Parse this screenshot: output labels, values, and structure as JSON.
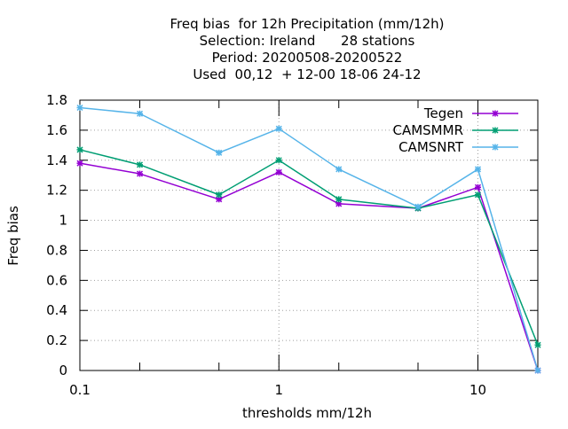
{
  "chart_data": {
    "type": "line",
    "title_lines": [
      "Freq bias  for 12h Precipitation (mm/12h)",
      "Selection: Ireland      28 stations",
      "Period: 20200508-20200522",
      "Used  00,12  + 12-00 18-06 24-12"
    ],
    "xlabel": "thresholds mm/12h",
    "ylabel": "Freq bias",
    "x_scale": "log",
    "xlim": [
      0.1,
      20
    ],
    "ylim": [
      0,
      1.8
    ],
    "x_ticks": [
      {
        "value": 0.1,
        "label": "0.1"
      },
      {
        "value": 1,
        "label": "1"
      },
      {
        "value": 10,
        "label": "10"
      }
    ],
    "x_minor_ticks": [
      0.2,
      0.5,
      2,
      5,
      20
    ],
    "y_ticks": [
      {
        "value": 0,
        "label": "0"
      },
      {
        "value": 0.2,
        "label": "0.2"
      },
      {
        "value": 0.4,
        "label": "0.4"
      },
      {
        "value": 0.6,
        "label": "0.6"
      },
      {
        "value": 0.8,
        "label": "0.8"
      },
      {
        "value": 1,
        "label": "1"
      },
      {
        "value": 1.2,
        "label": "1.2"
      },
      {
        "value": 1.4,
        "label": "1.4"
      },
      {
        "value": 1.6,
        "label": "1.6"
      },
      {
        "value": 1.8,
        "label": "1.8"
      }
    ],
    "grid": true,
    "legend_position": "top-right",
    "x": [
      0.1,
      0.2,
      0.5,
      1,
      2,
      5,
      10,
      20
    ],
    "series": [
      {
        "name": "Tegen",
        "color": "#9400d3",
        "values": [
          1.38,
          1.31,
          1.14,
          1.32,
          1.11,
          1.08,
          1.22,
          0.0
        ]
      },
      {
        "name": "CAMSMMR",
        "color": "#009e73",
        "values": [
          1.47,
          1.37,
          1.17,
          1.4,
          1.14,
          1.08,
          1.17,
          0.17
        ]
      },
      {
        "name": "CAMSNRT",
        "color": "#56b4e9",
        "values": [
          1.75,
          1.71,
          1.45,
          1.61,
          1.34,
          1.09,
          1.34,
          0.0
        ]
      }
    ]
  }
}
